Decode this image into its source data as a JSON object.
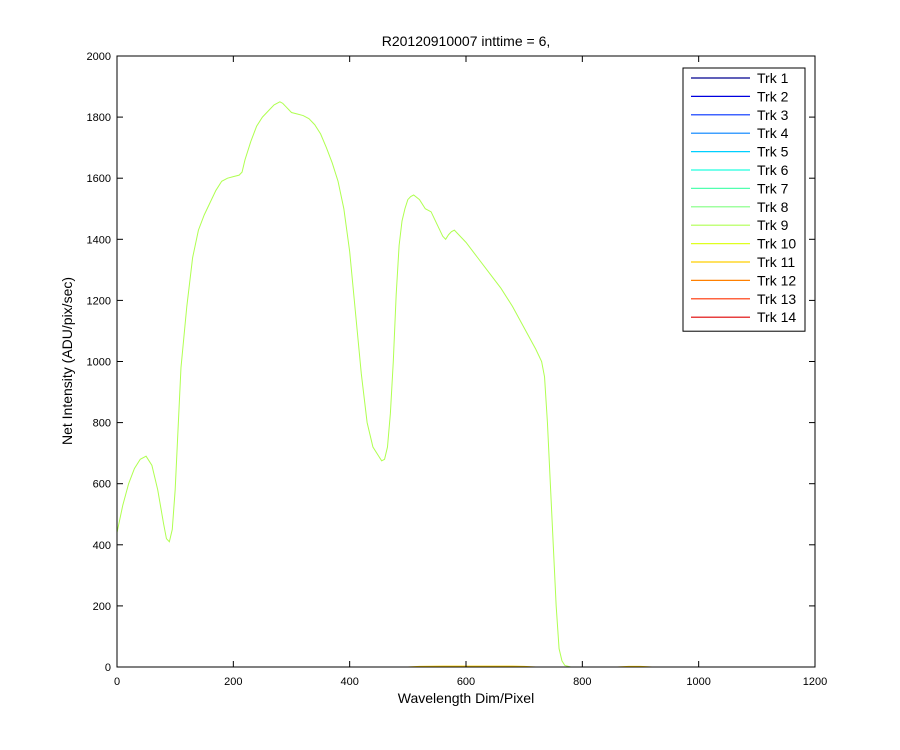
{
  "chart_data": {
    "type": "line",
    "title": "R20120910007 inttime = 6,",
    "xlabel": "Wavelength Dim/Pixel",
    "ylabel": "Net Intensity (ADU/pix/sec)",
    "xlim": [
      0,
      1200
    ],
    "ylim": [
      0,
      2000
    ],
    "xticks": [
      0,
      200,
      400,
      600,
      800,
      1000,
      1200
    ],
    "yticks": [
      0,
      200,
      400,
      600,
      800,
      1000,
      1200,
      1400,
      1600,
      1800,
      2000
    ],
    "grid": false,
    "legend_position": "top-right",
    "series": [
      {
        "name": "Trk 1",
        "color": "#00008f",
        "x": [
          0,
          1024
        ],
        "y": [
          0,
          0
        ]
      },
      {
        "name": "Trk 2",
        "color": "#0000df",
        "x": [
          0,
          1024
        ],
        "y": [
          0,
          0
        ]
      },
      {
        "name": "Trk 3",
        "color": "#0030ff",
        "x": [
          0,
          1024
        ],
        "y": [
          0,
          0
        ]
      },
      {
        "name": "Trk 4",
        "color": "#0080ff",
        "x": [
          0,
          1024
        ],
        "y": [
          0,
          0
        ]
      },
      {
        "name": "Trk 5",
        "color": "#00cfff",
        "x": [
          0,
          1024
        ],
        "y": [
          0,
          0
        ]
      },
      {
        "name": "Trk 6",
        "color": "#20ffdf",
        "x": [
          0,
          1024
        ],
        "y": [
          0,
          0
        ]
      },
      {
        "name": "Trk 7",
        "color": "#50ffaf",
        "x": [
          0,
          1024
        ],
        "y": [
          0,
          0
        ]
      },
      {
        "name": "Trk 8",
        "color": "#80ff80",
        "x": [
          0,
          1024
        ],
        "y": [
          0,
          0
        ]
      },
      {
        "name": "Trk 9",
        "color": "#afff50",
        "x": [
          0,
          10,
          20,
          30,
          40,
          50,
          60,
          70,
          80,
          85,
          90,
          95,
          100,
          105,
          110,
          120,
          130,
          140,
          150,
          160,
          170,
          180,
          190,
          200,
          210,
          215,
          220,
          230,
          240,
          250,
          260,
          270,
          280,
          285,
          290,
          300,
          310,
          320,
          330,
          340,
          350,
          360,
          370,
          380,
          390,
          400,
          410,
          420,
          430,
          440,
          450,
          455,
          460,
          465,
          470,
          475,
          480,
          485,
          490,
          495,
          500,
          505,
          510,
          520,
          530,
          540,
          550,
          560,
          565,
          570,
          575,
          580,
          590,
          600,
          620,
          640,
          660,
          680,
          700,
          720,
          730,
          735,
          740,
          745,
          750,
          755,
          760,
          765,
          770,
          780,
          800,
          850,
          900,
          1000,
          1024
        ],
        "y": [
          440,
          530,
          600,
          650,
          680,
          690,
          660,
          580,
          470,
          420,
          410,
          450,
          580,
          780,
          980,
          1180,
          1340,
          1430,
          1480,
          1520,
          1560,
          1590,
          1600,
          1605,
          1610,
          1620,
          1660,
          1720,
          1770,
          1800,
          1820,
          1840,
          1850,
          1845,
          1835,
          1815,
          1810,
          1805,
          1795,
          1775,
          1745,
          1700,
          1650,
          1590,
          1500,
          1360,
          1160,
          960,
          800,
          720,
          690,
          675,
          680,
          720,
          830,
          1000,
          1220,
          1380,
          1460,
          1500,
          1530,
          1540,
          1545,
          1530,
          1500,
          1490,
          1450,
          1410,
          1400,
          1415,
          1425,
          1430,
          1410,
          1390,
          1340,
          1290,
          1240,
          1180,
          1110,
          1040,
          1000,
          950,
          800,
          600,
          400,
          200,
          60,
          20,
          5,
          0,
          0,
          0,
          0,
          0,
          0
        ]
      },
      {
        "name": "Trk 10",
        "color": "#dfff20",
        "x": [
          0,
          1024
        ],
        "y": [
          0,
          0
        ]
      },
      {
        "name": "Trk 11",
        "color": "#ffcf00",
        "x": [
          0,
          500,
          520,
          560,
          600,
          640,
          680,
          700,
          720,
          860,
          880,
          900,
          920,
          1024
        ],
        "y": [
          0,
          0,
          2,
          3,
          3,
          3,
          3,
          2,
          0,
          0,
          2,
          2,
          0,
          0
        ]
      },
      {
        "name": "Trk 12",
        "color": "#ff8000",
        "x": [
          0,
          1024
        ],
        "y": [
          0,
          0
        ]
      },
      {
        "name": "Trk 13",
        "color": "#ff3000",
        "x": [
          0,
          1024
        ],
        "y": [
          0,
          0
        ]
      },
      {
        "name": "Trk 14",
        "color": "#df0000",
        "x": [
          0,
          1024
        ],
        "y": [
          0,
          0
        ]
      }
    ]
  }
}
